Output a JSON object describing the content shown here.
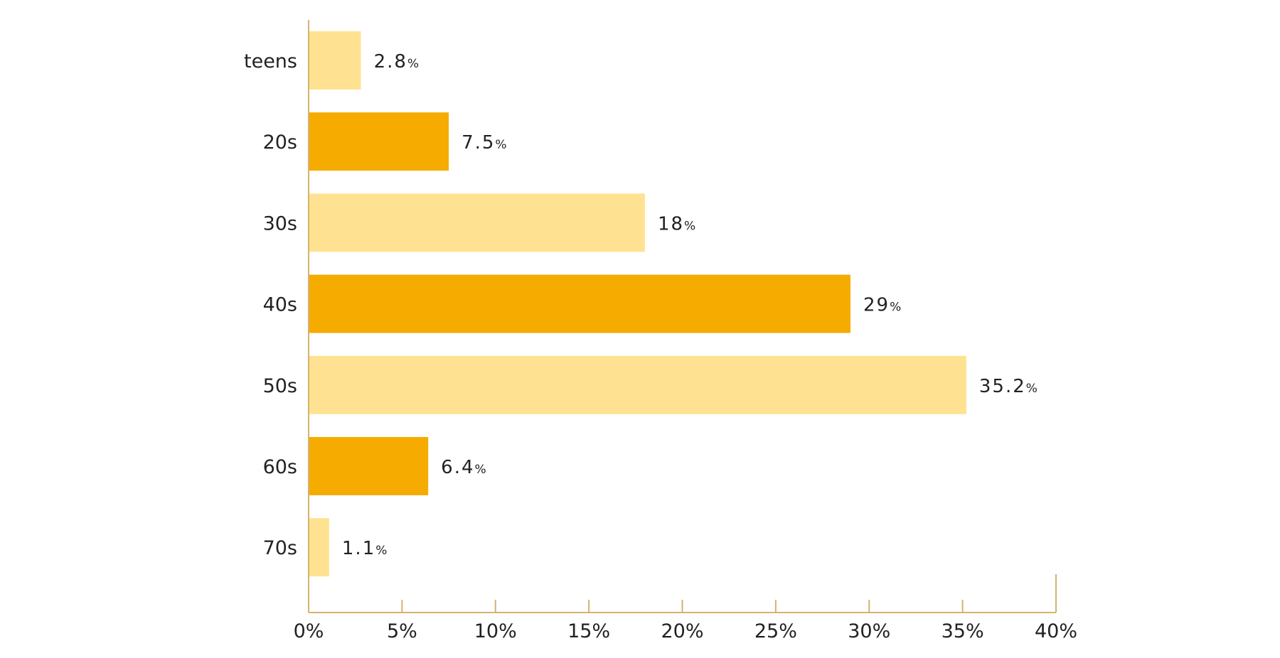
{
  "chart_data": {
    "type": "bar",
    "orientation": "horizontal",
    "categories": [
      "teens",
      "20s",
      "30s",
      "40s",
      "50s",
      "60s",
      "70s"
    ],
    "values": [
      2.8,
      7.5,
      18,
      29,
      35.2,
      6.4,
      1.1
    ],
    "value_labels": [
      "2.8",
      "7.5",
      "18",
      "29",
      "35.2",
      "6.4",
      "1.1"
    ],
    "value_unit": "%",
    "xlim": [
      0,
      40
    ],
    "x_ticks": [
      0,
      5,
      10,
      15,
      20,
      25,
      30,
      35,
      40
    ],
    "x_tick_labels": [
      "0%",
      "5%",
      "10%",
      "15%",
      "20%",
      "25%",
      "30%",
      "35%",
      "40%"
    ],
    "title": "",
    "xlabel": "",
    "ylabel": "",
    "grid": false,
    "legend": "none",
    "colors": {
      "bar_light": "#FFE291",
      "bar_dark": "#F5AB00",
      "axis": "#D4B270",
      "text": "#222222"
    },
    "bar_color_pattern": [
      "bar_light",
      "bar_dark"
    ]
  }
}
